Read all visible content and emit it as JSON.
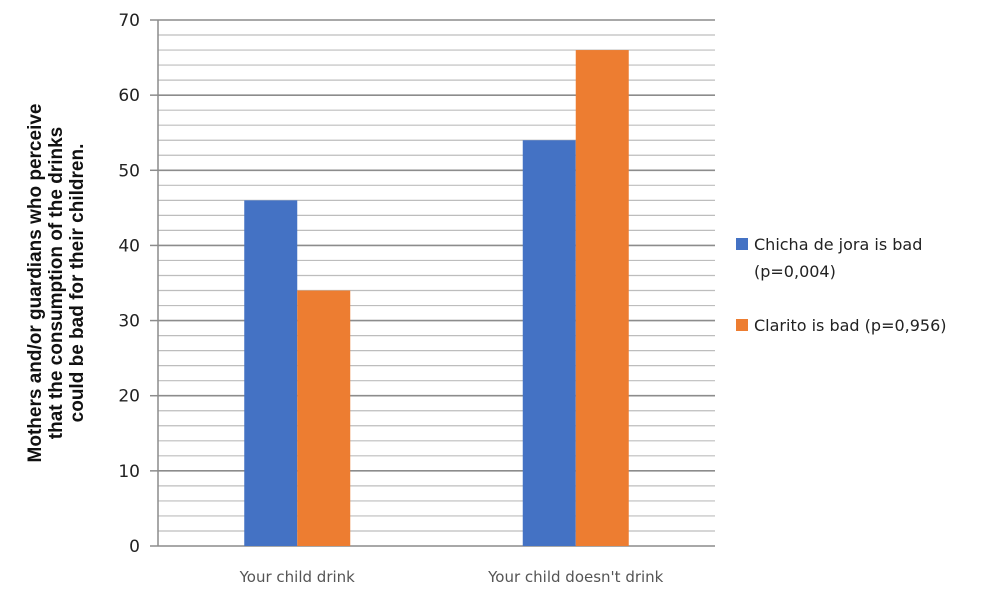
{
  "chart_data": {
    "type": "bar",
    "title": "",
    "xlabel": "",
    "ylabel": [
      "Mothers and/or guardians who perceive",
      "that the consumption of the drinks",
      "could be bad for their children."
    ],
    "categories": [
      "Your child  drink",
      "Your child doesn't drink"
    ],
    "series": [
      {
        "name": "Chicha de jora is bad (p=0,004)",
        "legend_lines": [
          "Chicha de jora is bad",
          "(p=0,004)"
        ],
        "color": "#4472C4",
        "values": [
          46,
          54
        ]
      },
      {
        "name": "Clarito is bad (p=0,956)",
        "legend_lines": [
          "Clarito is bad (p=0,956)"
        ],
        "color": "#ED7D31",
        "values": [
          34,
          66
        ]
      }
    ],
    "ylim": [
      0,
      70
    ],
    "yticks": [
      0,
      10,
      20,
      30,
      40,
      50,
      60,
      70
    ],
    "minor_step": 2,
    "grid": true,
    "legend_position": "right"
  }
}
